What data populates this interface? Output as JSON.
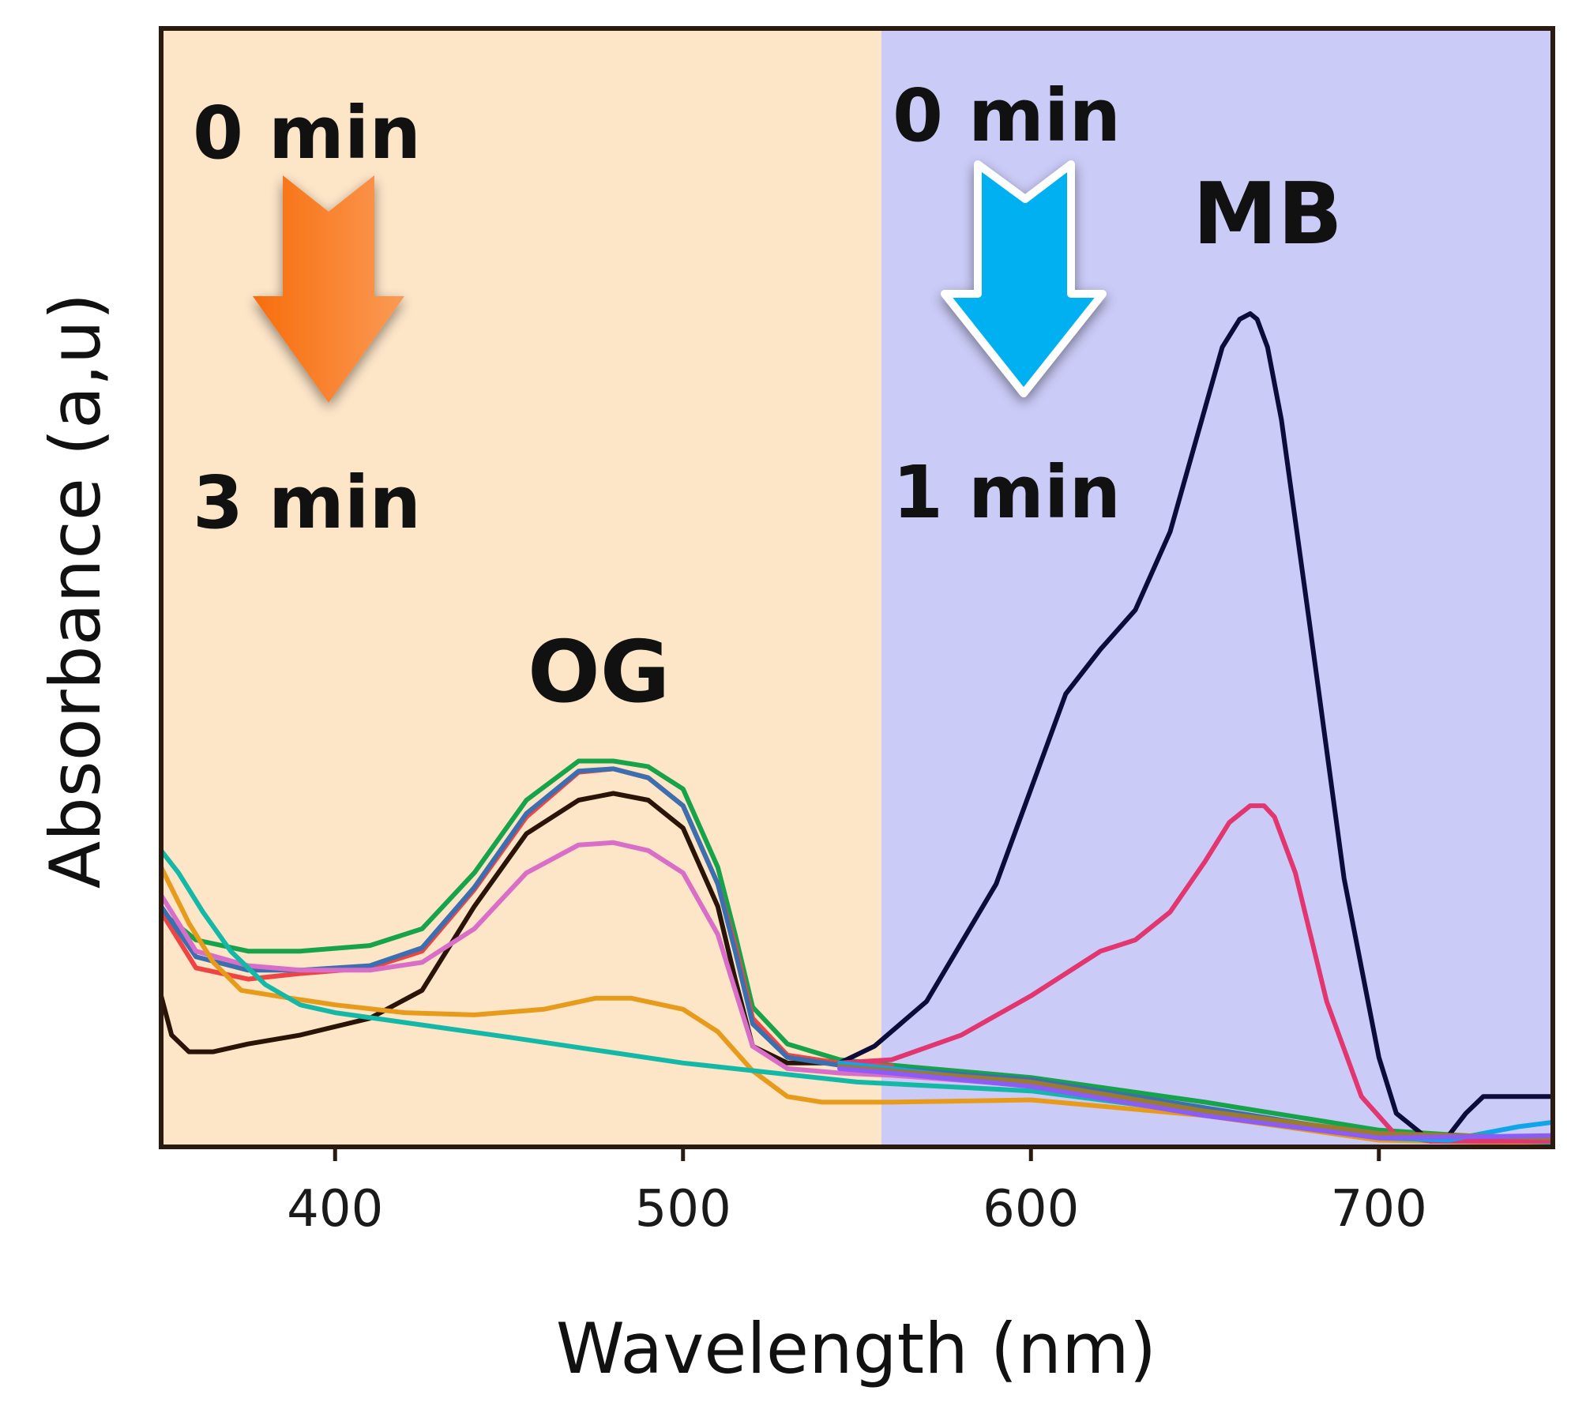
{
  "chart_data": {
    "type": "line",
    "title": "",
    "xlabel": "Wavelength (nm)",
    "ylabel": "Absorbance (a,u)",
    "xlim": [
      350,
      750
    ],
    "ylim": [
      0,
      1.0
    ],
    "xticks": [
      400,
      500,
      600,
      700
    ],
    "xtick_labels": [
      "400",
      "500",
      "600",
      "700"
    ],
    "yticks_shown": false,
    "grid": false,
    "regions": [
      {
        "name": "og-region",
        "x_range": [
          350,
          557
        ],
        "color": "#fde5c8"
      },
      {
        "name": "mb-region",
        "x_range": [
          557,
          750
        ],
        "color": "#cbcbf8"
      }
    ],
    "annotations": {
      "og_start": "0 min",
      "og_end": "3 min",
      "mb_start": "0 min",
      "mb_end": "1 min",
      "og_label": "OG",
      "mb_label": "MB"
    },
    "arrows": {
      "og_arrow_color": "#f97316",
      "mb_arrow_color": "#00b0f0"
    },
    "series": [
      {
        "name": "black (0 min)",
        "color": "#2a1408",
        "x": [
          350,
          353,
          358,
          365,
          375,
          390,
          410,
          425,
          440,
          455,
          470,
          480,
          490,
          500,
          510,
          515,
          520,
          530,
          545
        ],
        "y": [
          0.135,
          0.1,
          0.085,
          0.085,
          0.092,
          0.1,
          0.115,
          0.14,
          0.215,
          0.28,
          0.31,
          0.316,
          0.31,
          0.285,
          0.215,
          0.15,
          0.09,
          0.075,
          0.075
        ]
      },
      {
        "name": "green",
        "color": "#16a34a",
        "x": [
          350,
          360,
          375,
          390,
          410,
          425,
          440,
          455,
          470,
          480,
          490,
          500,
          510,
          515,
          520,
          530,
          545,
          560,
          600,
          650,
          700,
          750
        ],
        "y": [
          0.21,
          0.185,
          0.175,
          0.175,
          0.18,
          0.195,
          0.245,
          0.31,
          0.345,
          0.345,
          0.34,
          0.32,
          0.25,
          0.19,
          0.125,
          0.092,
          0.078,
          0.073,
          0.062,
          0.04,
          0.015,
          0.005
        ]
      },
      {
        "name": "red",
        "color": "#ef4444",
        "x": [
          350,
          360,
          375,
          390,
          410,
          425,
          440,
          455,
          470,
          480,
          490,
          500,
          510,
          515,
          520,
          530,
          545,
          560
        ],
        "y": [
          0.21,
          0.16,
          0.15,
          0.155,
          0.16,
          0.175,
          0.23,
          0.295,
          0.335,
          0.338,
          0.33,
          0.305,
          0.235,
          0.18,
          0.115,
          0.082,
          0.075,
          0.072
        ]
      },
      {
        "name": "blue",
        "color": "#3b6fb0",
        "x": [
          350,
          360,
          375,
          390,
          410,
          425,
          440,
          455,
          470,
          480,
          490,
          500,
          510,
          515,
          520,
          530,
          545,
          560,
          600,
          650,
          700,
          750
        ],
        "y": [
          0.215,
          0.17,
          0.158,
          0.158,
          0.162,
          0.178,
          0.232,
          0.298,
          0.336,
          0.338,
          0.33,
          0.305,
          0.235,
          0.175,
          0.11,
          0.08,
          0.073,
          0.07,
          0.06,
          0.035,
          0.01,
          0.005
        ]
      },
      {
        "name": "pink",
        "color": "#d96ec8",
        "x": [
          350,
          360,
          375,
          390,
          410,
          425,
          440,
          455,
          470,
          480,
          490,
          500,
          510,
          515,
          520,
          530,
          545,
          560,
          600,
          650,
          700,
          750
        ],
        "y": [
          0.225,
          0.175,
          0.162,
          0.158,
          0.158,
          0.165,
          0.195,
          0.245,
          0.27,
          0.272,
          0.265,
          0.245,
          0.19,
          0.14,
          0.09,
          0.07,
          0.066,
          0.064,
          0.055,
          0.03,
          0.008,
          0.004
        ]
      },
      {
        "name": "orange",
        "color": "#e69b1a",
        "x": [
          350,
          358,
          365,
          373,
          385,
          400,
          420,
          440,
          460,
          475,
          485,
          500,
          510,
          520,
          530,
          540,
          560,
          600,
          650,
          700,
          750
        ],
        "y": [
          0.25,
          0.2,
          0.165,
          0.14,
          0.134,
          0.127,
          0.12,
          0.118,
          0.123,
          0.133,
          0.133,
          0.123,
          0.103,
          0.068,
          0.045,
          0.04,
          0.04,
          0.042,
          0.028,
          0.006,
          0.003
        ]
      },
      {
        "name": "teal (3 min)",
        "color": "#14b8a6",
        "x": [
          350,
          355,
          362,
          370,
          380,
          390,
          400,
          450,
          500,
          550,
          600,
          650,
          700,
          750
        ],
        "y": [
          0.265,
          0.245,
          0.21,
          0.175,
          0.145,
          0.127,
          0.12,
          0.098,
          0.075,
          0.058,
          0.05,
          0.03,
          0.01,
          0.004
        ]
      },
      {
        "name": "navy (MB 0 min)",
        "color": "#0c0b3a",
        "x": [
          545,
          555,
          570,
          590,
          600,
          610,
          620,
          630,
          640,
          650,
          655,
          660,
          663,
          665,
          668,
          672,
          680,
          690,
          700,
          705,
          715,
          720,
          725,
          730,
          740,
          750
        ],
        "y": [
          0.075,
          0.09,
          0.13,
          0.235,
          0.32,
          0.405,
          0.445,
          0.48,
          0.55,
          0.66,
          0.715,
          0.74,
          0.745,
          0.74,
          0.715,
          0.65,
          0.47,
          0.24,
          0.08,
          0.03,
          0.005,
          0.01,
          0.03,
          0.045,
          0.045,
          0.045
        ]
      },
      {
        "name": "crimson (MB)",
        "color": "#e23670",
        "x": [
          545,
          560,
          580,
          600,
          620,
          630,
          640,
          650,
          657,
          663,
          667,
          670,
          676,
          685,
          695,
          705,
          715,
          750
        ],
        "y": [
          0.075,
          0.078,
          0.1,
          0.135,
          0.175,
          0.185,
          0.21,
          0.255,
          0.29,
          0.305,
          0.305,
          0.295,
          0.245,
          0.13,
          0.045,
          0.01,
          0.005,
          0.005
        ]
      },
      {
        "name": "cyan (MB 1 min)",
        "color": "#0ea5e9",
        "x": [
          545,
          560,
          600,
          650,
          700,
          720,
          730,
          740,
          750
        ],
        "y": [
          0.075,
          0.07,
          0.055,
          0.03,
          0.008,
          0.006,
          0.012,
          0.018,
          0.022
        ]
      },
      {
        "name": "olive",
        "color": "#9a7b2f",
        "x": [
          545,
          560,
          600,
          650,
          700,
          750
        ],
        "y": [
          0.072,
          0.068,
          0.058,
          0.032,
          0.012,
          0.008
        ]
      },
      {
        "name": "purple",
        "color": "#8b5cf6",
        "x": [
          545,
          560,
          600,
          650,
          700,
          750
        ],
        "y": [
          0.07,
          0.066,
          0.054,
          0.028,
          0.008,
          0.01
        ]
      }
    ]
  }
}
